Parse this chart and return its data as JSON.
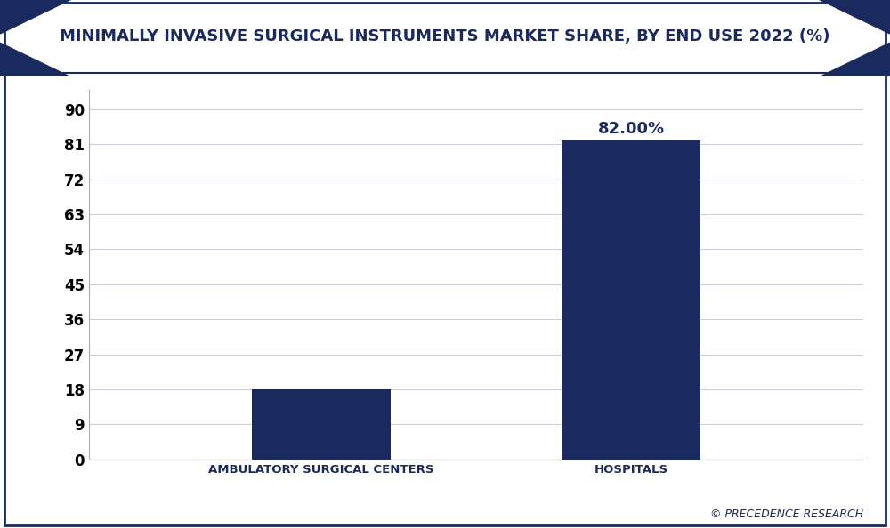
{
  "title": "MINIMALLY INVASIVE SURGICAL INSTRUMENTS MARKET SHARE, BY END USE 2022 (%)",
  "categories": [
    "AMBULATORY SURGICAL CENTERS",
    "HOSPITALS"
  ],
  "values": [
    18,
    82
  ],
  "bar_label": [
    "",
    "82.00%"
  ],
  "bar_color": "#1b2a5e",
  "background_color": "#ffffff",
  "plot_bg_color": "#ffffff",
  "yticks": [
    0,
    9,
    18,
    27,
    36,
    45,
    54,
    63,
    72,
    81,
    90
  ],
  "ylim": [
    0,
    95
  ],
  "title_bg_color": "#1b2a5e",
  "title_text_color": "#1b2a5e",
  "title_fontsize": 13,
  "bar_label_fontsize": 13,
  "tick_label_fontsize": 12,
  "x_label_color": "#1b2a5e",
  "watermark": "© PRECEDENCE RESEARCH",
  "watermark_color": "#1b2a5e",
  "grid_color": "#ccccdd",
  "border_color": "#1b2a5e",
  "bar_width": 0.18,
  "x_positions": [
    0.3,
    0.7
  ]
}
